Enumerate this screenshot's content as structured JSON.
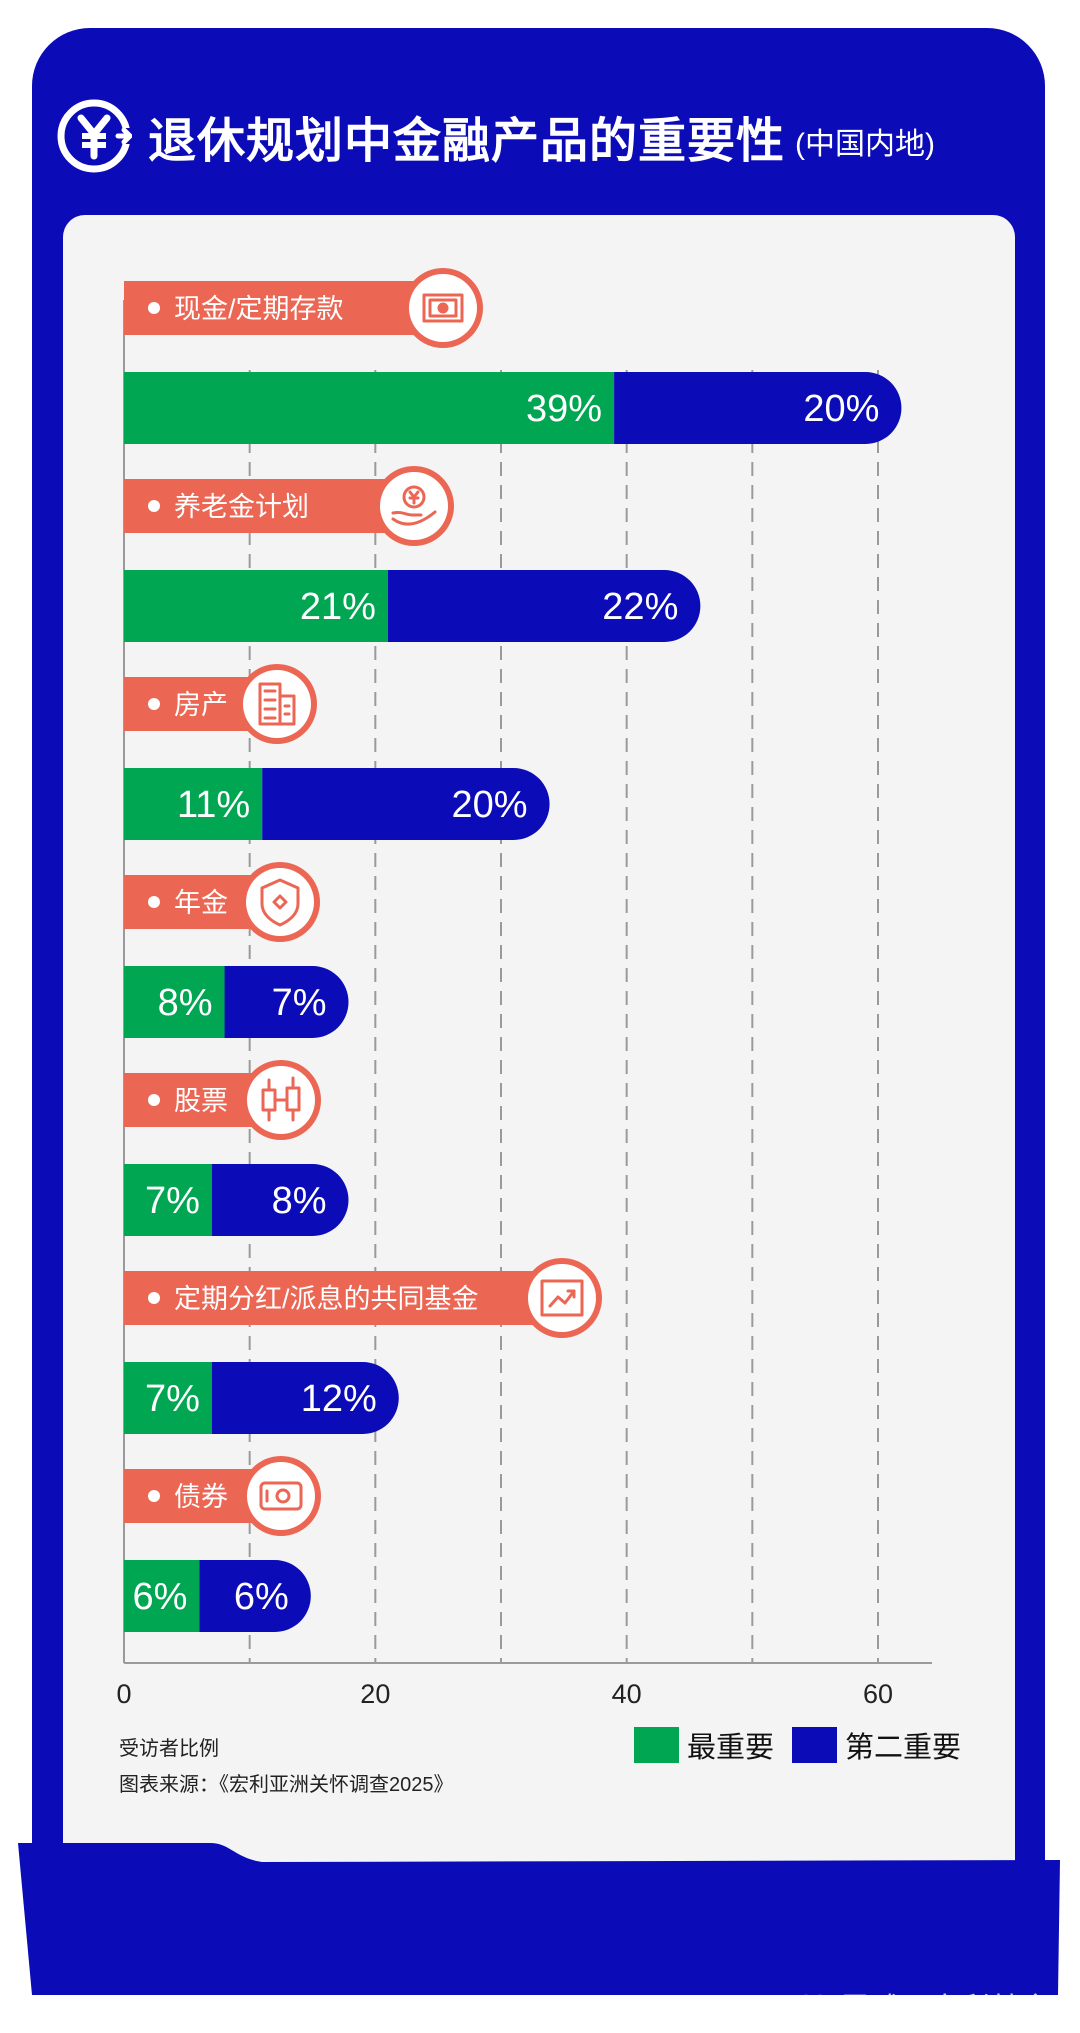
{
  "header": {
    "title": "退休规划中金融产品的重要性",
    "subtitle": "(中国内地)",
    "icon": "yuan-icon"
  },
  "chart_data": {
    "type": "bar",
    "orientation": "horizontal",
    "stacked": true,
    "categories": [
      "现金/定期存款",
      "养老金计划",
      "房产",
      "年金",
      "股票",
      "定期分红/派息的共同基金",
      "债券"
    ],
    "category_icons": [
      "cash-icon",
      "hand-yuan-icon",
      "building-icon",
      "shield-icon",
      "candlestick-icon",
      "trend-chart-icon",
      "banknote-icon"
    ],
    "series": [
      {
        "name": "最重要",
        "color": "#00a651",
        "values": [
          39,
          21,
          11,
          8,
          7,
          7,
          6
        ]
      },
      {
        "name": "第二重要",
        "color": "#0c0bb8",
        "values": [
          20,
          22,
          20,
          7,
          8,
          12,
          6
        ]
      }
    ],
    "value_suffix": "%",
    "x_ticks": [
      0,
      20,
      40,
      60
    ],
    "xlim": [
      0,
      64
    ],
    "grid": "dashed vertical every 10",
    "legend_position": "bottom-right",
    "label_color": "#ec6654"
  },
  "footer": {
    "note": "受访者比例",
    "source": "图表来源：《宏利亚洲关怀调查2025》"
  },
  "legend": [
    {
      "label": "最重要",
      "color": "#00a651"
    },
    {
      "label": "第二重要",
      "color": "#0c0bb8"
    }
  ],
  "watermark": {
    "text": "雪球：宏利基金"
  }
}
